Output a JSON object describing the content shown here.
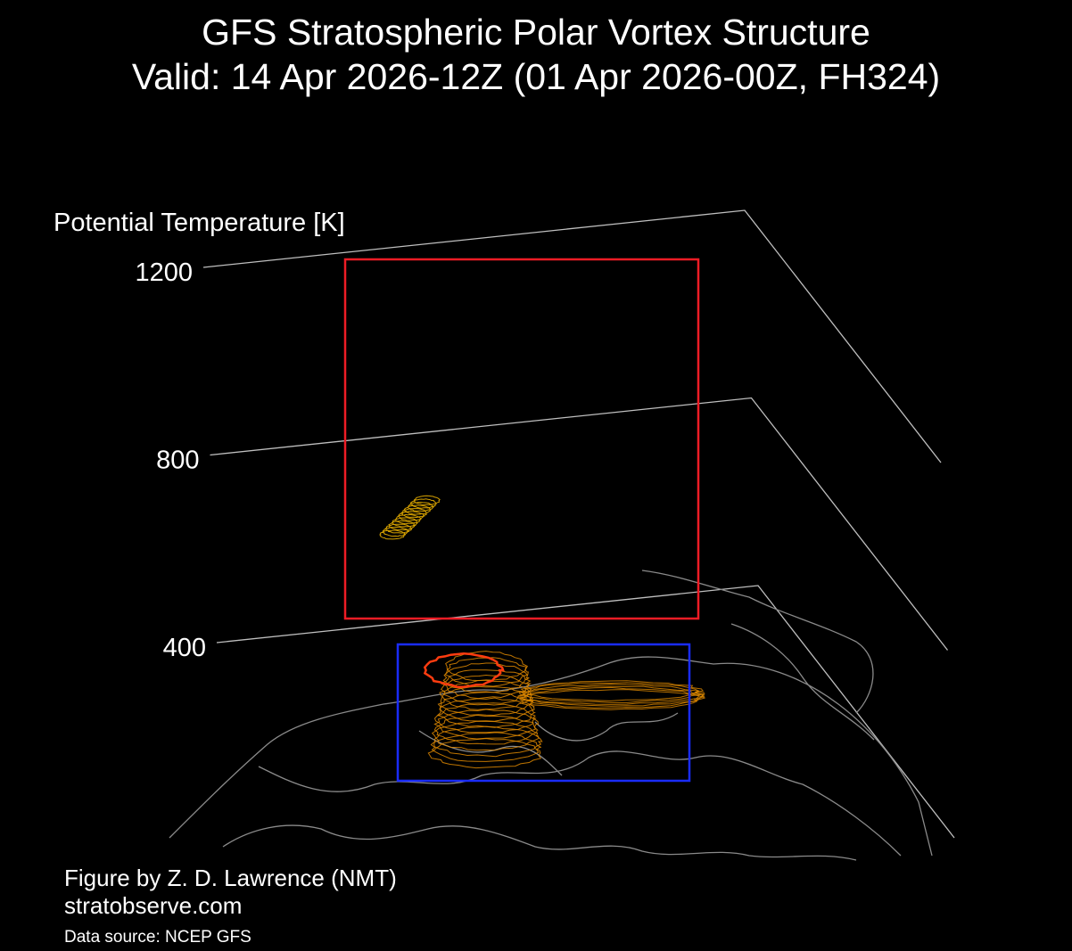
{
  "title_line1": "GFS Stratospheric Polar Vortex Structure",
  "title_line2": "Valid: 14 Apr 2026-12Z  (01 Apr 2026-00Z, FH324)",
  "credits": {
    "figure_by": "Figure by Z. D. Lawrence (NMT)",
    "website": "stratobserve.com",
    "data_source": "Data source: NCEP GFS"
  },
  "chart_data": {
    "type": "3d-isosurface",
    "zlabel": "Potential Temperature [K]",
    "zticks": [
      {
        "value": 1200,
        "label": "1200"
      },
      {
        "value": 800,
        "label": "800"
      },
      {
        "value": 400,
        "label": "400"
      }
    ],
    "background": "#000000",
    "colors": {
      "axis_planes": "#bfbfbf",
      "coastlines": "#8a8a8a",
      "vortex_contours": "#e08a00",
      "upper_fragment": "#d4a000",
      "vortex_top": "#ff3c10",
      "highlight_box_upper": "#ee1c25",
      "highlight_box_lower": "#1a2cff"
    }
  }
}
